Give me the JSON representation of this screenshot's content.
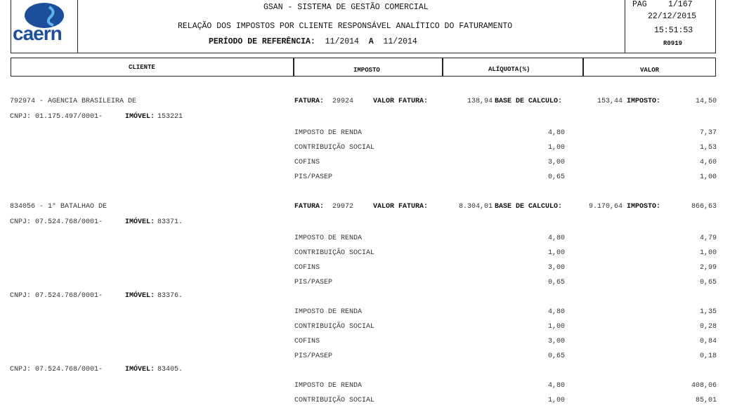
{
  "header": {
    "logo_text": "caern",
    "system_title": "GSAN - SISTEMA DE GESTÃO COMERCIAL",
    "report_title": "RELAÇÃO DOS IMPOSTOS POR CLIENTE RESPONSÁVEL ANALÍTICO DO FATURAMENTO",
    "period_label": "PERÍODO DE REFERÊNCIA:",
    "period_from": "11/2014",
    "period_sep": "A",
    "period_to": "11/2014",
    "page_label": "PAG",
    "page": "1/167",
    "date": "22/12/2015",
    "time": "15:51:53",
    "report_code": "R0919",
    "brand_color": "#1b4f9c"
  },
  "columns": [
    "CLIENTE",
    "IMPOSTO",
    "ALÍQUOTA(%)",
    "VALOR"
  ],
  "labels": {
    "fatura": "FATURA:",
    "valor_fatura": "VALOR FATURA:",
    "base_calculo": "BASE DE CALCULO:",
    "imposto": "IMPOSTO:",
    "cnpj": "CNPJ:",
    "imovel": "IMÓVEL:"
  },
  "clients": [
    {
      "name": "792974 - AGENCIA BRASILEIRA DE",
      "fatura": "29924",
      "valor_fatura": "138,94",
      "base_calculo": "153,44",
      "imposto": "14,50",
      "imoveis": [
        {
          "cnpj": "01.175.497/0001-",
          "imovel": "153221",
          "taxes": [
            {
              "name": "IMPOSTO DE RENDA",
              "aliquota": "4,80",
              "valor": "7,37"
            },
            {
              "name": "CONTRIBUIÇÃO SOCIAL",
              "aliquota": "1,00",
              "valor": "1,53"
            },
            {
              "name": "COFINS",
              "aliquota": "3,00",
              "valor": "4,60"
            },
            {
              "name": "PIS/PASEP",
              "aliquota": "0,65",
              "valor": "1,00"
            }
          ]
        }
      ]
    },
    {
      "name": "834056 - 1° BATALHAO DE",
      "fatura": "29972",
      "valor_fatura": "8.304,01",
      "base_calculo": "9.170,64",
      "imposto": "866,63",
      "imoveis": [
        {
          "cnpj": "07.524.768/0001-",
          "imovel": "83371.",
          "taxes": [
            {
              "name": "IMPOSTO DE RENDA",
              "aliquota": "4,80",
              "valor": "4,79"
            },
            {
              "name": "CONTRIBUIÇÃO SOCIAL",
              "aliquota": "1,00",
              "valor": "1,00"
            },
            {
              "name": "COFINS",
              "aliquota": "3,00",
              "valor": "2,99"
            },
            {
              "name": "PIS/PASEP",
              "aliquota": "0,65",
              "valor": "0,65"
            }
          ]
        },
        {
          "cnpj": "07.524.768/0001-",
          "imovel": "83376.",
          "taxes": [
            {
              "name": "IMPOSTO DE RENDA",
              "aliquota": "4,80",
              "valor": "1,35"
            },
            {
              "name": "CONTRIBUIÇÃO SOCIAL",
              "aliquota": "1,00",
              "valor": "0,28"
            },
            {
              "name": "COFINS",
              "aliquota": "3,00",
              "valor": "0,84"
            },
            {
              "name": "PIS/PASEP",
              "aliquota": "0,65",
              "valor": "0,18"
            }
          ]
        },
        {
          "cnpj": "07.524.768/0001-",
          "imovel": "83405.",
          "taxes": [
            {
              "name": "IMPOSTO DE RENDA",
              "aliquota": "4,80",
              "valor": "408,06"
            },
            {
              "name": "CONTRIBUIÇÃO SOCIAL",
              "aliquota": "1,00",
              "valor": "85,01"
            }
          ]
        }
      ]
    }
  ]
}
